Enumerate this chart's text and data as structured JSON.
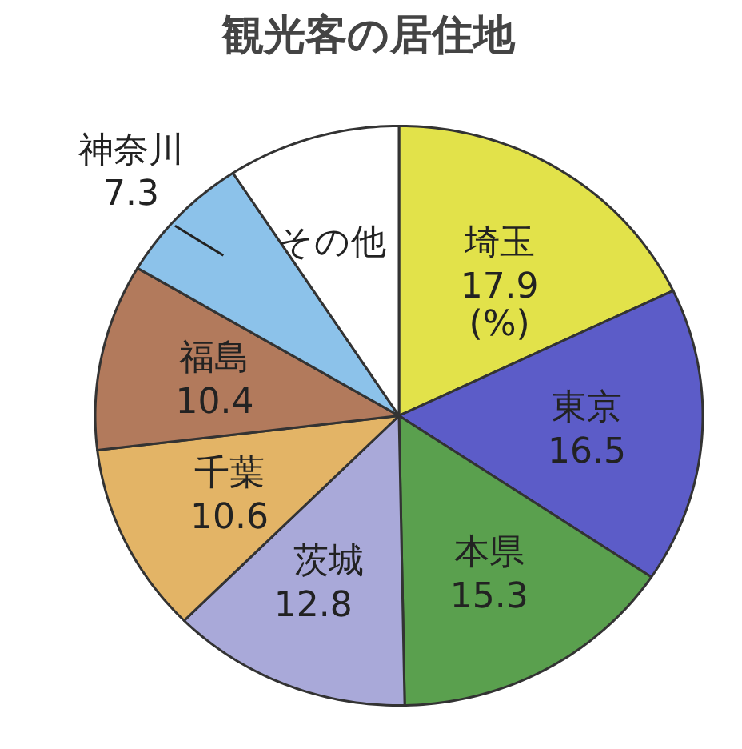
{
  "chart_data": {
    "type": "pie",
    "title": "観光客の居住地",
    "categories": [
      "埼玉",
      "東京",
      "本県",
      "茨城",
      "千葉",
      "福島",
      "神奈川",
      "その他"
    ],
    "values": [
      17.9,
      16.5,
      15.3,
      12.8,
      10.6,
      10.4,
      7.3,
      9.2
    ],
    "value_labels": [
      "17.9",
      "16.5",
      "15.3",
      "12.8",
      "10.6",
      "10.4",
      "7.3",
      null
    ],
    "colors": [
      "#e2e24a",
      "#5c5cc8",
      "#5aa04e",
      "#a9a9d9",
      "#e3b466",
      "#b27a5c",
      "#8cc2ea",
      "#ffffff"
    ],
    "annotations": [
      "(%)"
    ],
    "legend": false
  }
}
